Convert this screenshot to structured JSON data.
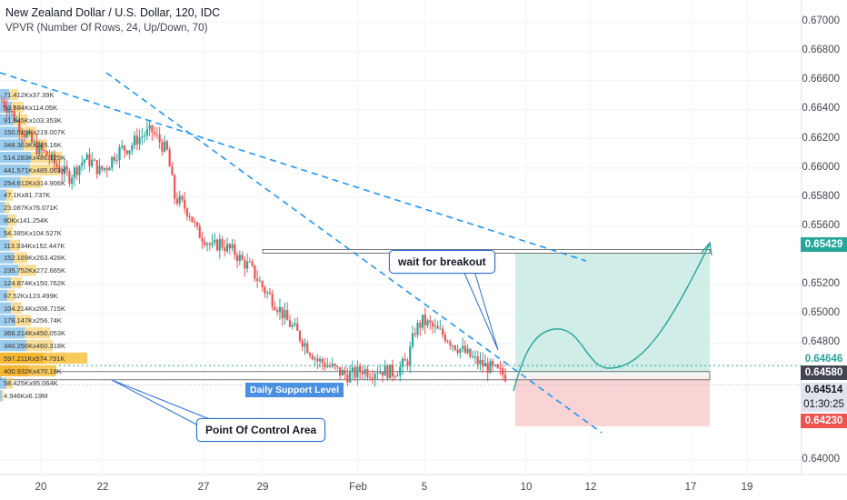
{
  "header": {
    "title": "New Zealand Dollar / U.S. Dollar, 120, IDC",
    "indicator": "VPVR (Number Of Rows, 24, Up/Down, 70)"
  },
  "annotations": {
    "wait_breakout": "wait for breakout",
    "point_of_control": "Point Of Control Area",
    "daily_support": "Daily Support Level"
  },
  "price_axis": {
    "ticks": [
      "0.67000",
      "0.66800",
      "0.66600",
      "0.66400",
      "0.66200",
      "0.66000",
      "0.65800",
      "0.65600",
      "0.65200",
      "0.65000",
      "0.64800",
      "0.64000"
    ],
    "price_labels": {
      "target": "0.65429",
      "upper": "0.64646",
      "current": "0.64580",
      "lower": "0.64514",
      "countdown": "01:30:25",
      "stop": "0.64230"
    }
  },
  "time_axis": {
    "ticks": [
      "20",
      "22",
      "27",
      "29",
      "Feb",
      "5",
      "10",
      "12",
      "17",
      "19"
    ]
  },
  "colors": {
    "up_candle": "#26a69a",
    "down_candle": "#ef5350",
    "trendline": "#2196f3",
    "profit_zone": "#d1ede8",
    "loss_zone": "#fad4d4",
    "vp_blue": "#4aa3df",
    "vp_yellow": "#f5c342",
    "target_box": "#26a69a",
    "stop_box": "#ef5350",
    "current_box": "#434651"
  },
  "volume_profile": [
    "71.412Kx37.39K",
    "53.584Kx114.05K",
    "91.645Kx103.353K",
    "150.019Kx219.007K",
    "348.363Kx285.16K",
    "514.283Kx486.125K",
    "441.571Kx485.003K",
    "254.612Kx314.906K",
    "47.1Kx81.737K",
    "23.087Kx76.071K",
    "80Kx141.254K",
    "54.385Kx104.527K",
    "113.334Kx152.447K",
    "152.169Kx263.426K",
    "235.752Kx272.665K",
    "124.874Kx150.762K",
    "67.52Kx123.499K",
    "104.214Kx208.715K",
    "178.147Kx256.74K",
    "366.214Kx450.053K",
    "340.256Kx460.318K",
    "597.211Kx574.791K",
    "400.932Kx470.18K",
    "58.425Kx95.064K",
    "4.946Kx6.19M"
  ],
  "chart_data": {
    "type": "candlestick",
    "title": "New Zealand Dollar / U.S. Dollar, 120, IDC",
    "ylim": [
      0.639,
      0.6715
    ],
    "x_ticks": [
      "20",
      "22",
      "27",
      "29",
      "Feb",
      "5",
      "10",
      "12",
      "17",
      "19"
    ],
    "trend": [
      0.6646,
      0.664,
      0.6632,
      0.6624,
      0.6617,
      0.6612,
      0.6609,
      0.6603,
      0.6598,
      0.6594,
      0.66,
      0.6606,
      0.6604,
      0.6598,
      0.6601,
      0.6609,
      0.6613,
      0.6614,
      0.662,
      0.6623,
      0.6625,
      0.6618,
      0.6611,
      0.658,
      0.6575,
      0.6569,
      0.6556,
      0.6552,
      0.6545,
      0.6549,
      0.6545,
      0.6542,
      0.6536,
      0.6532,
      0.6524,
      0.6516,
      0.651,
      0.6503,
      0.6495,
      0.6489,
      0.6482,
      0.6475,
      0.6468,
      0.6466,
      0.6463,
      0.646,
      0.6458,
      0.6459,
      0.6462,
      0.646,
      0.6462,
      0.6461,
      0.646,
      0.6463,
      0.6468,
      0.6489,
      0.6495,
      0.6492,
      0.6488,
      0.6485,
      0.648,
      0.6476,
      0.6472,
      0.6468,
      0.6465,
      0.6463,
      0.646,
      0.6458
    ],
    "levels": {
      "target": 0.65429,
      "upper": 0.64646,
      "current": 0.6458,
      "lower": 0.64514,
      "stop": 0.6423
    }
  }
}
